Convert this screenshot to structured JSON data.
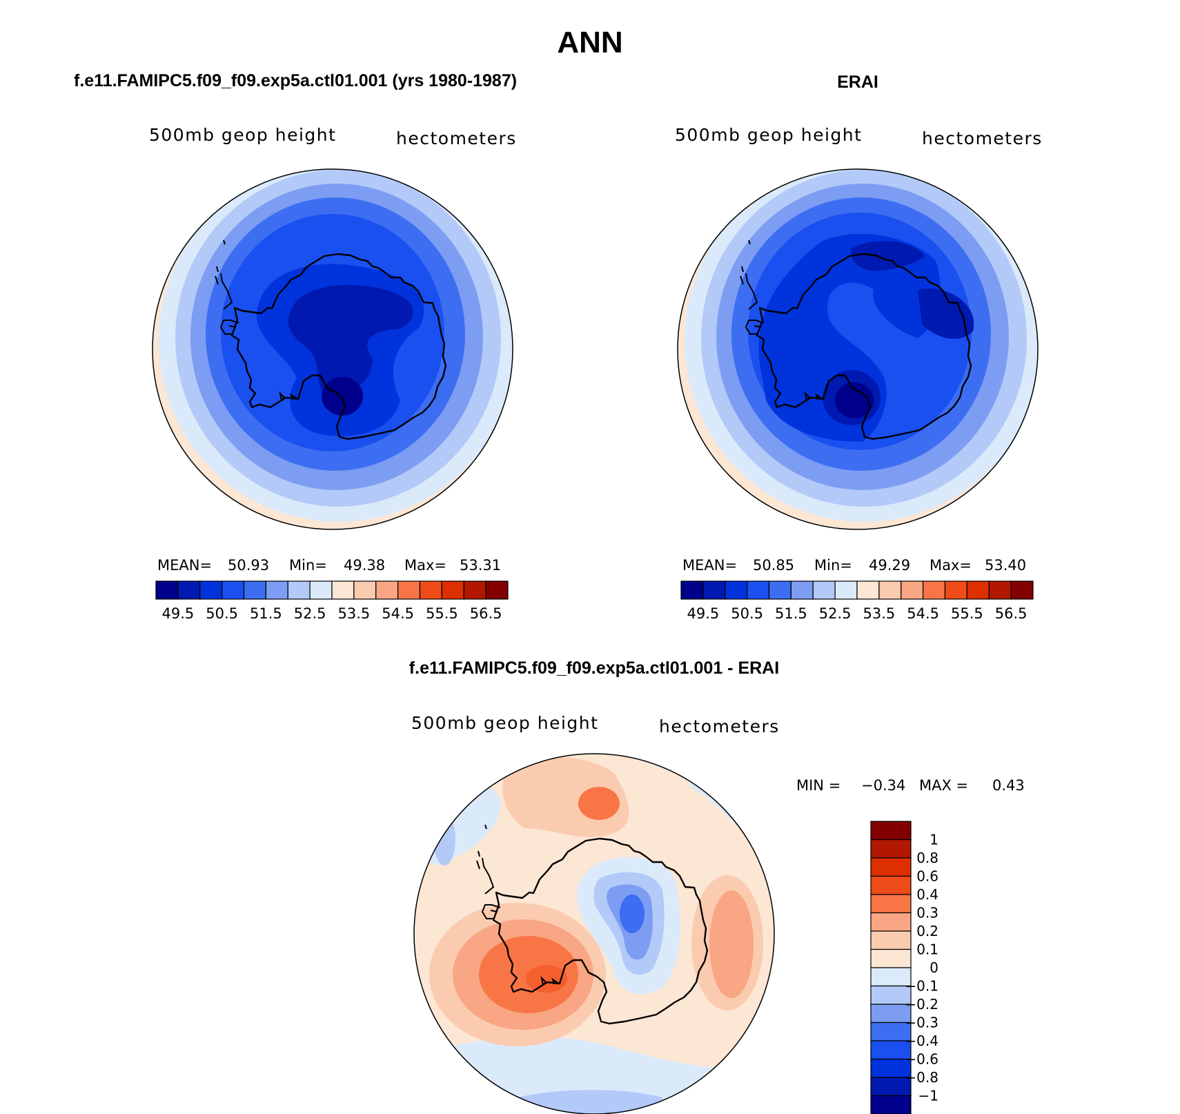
{
  "figure": {
    "title": "ANN"
  },
  "colors": {
    "abs_levels": [
      "#00008c",
      "#0019b0",
      "#0033dc",
      "#1a4ff0",
      "#3d6ef2",
      "#7d9df3",
      "#b3c9f8",
      "#daeafb",
      "#fce6d4",
      "#fbcbb0",
      "#f8a683",
      "#f87546",
      "#f04c19",
      "#de2f00",
      "#b21700",
      "#820000"
    ],
    "diff_levels": [
      "#00008c",
      "#0019b0",
      "#0033dc",
      "#1a4ff0",
      "#3d6ef2",
      "#7d9df3",
      "#b3c9f8",
      "#daeafb",
      "#fce6d4",
      "#fbcbb0",
      "#f8a683",
      "#f87546",
      "#f04c19",
      "#de2f00",
      "#b21700",
      "#820000"
    ]
  },
  "panels": {
    "model": {
      "header": "f.e11.FAMIPC5.f09_f09.exp5a.ctl01.001 (yrs 1980-1987)",
      "variable": "500mb geop height",
      "units": "hectometers",
      "stats": {
        "mean_label": "MEAN=",
        "mean": "50.93",
        "min_label": "Min=",
        "min": "49.38",
        "max_label": "Max=",
        "max": "53.31"
      },
      "colorbar_labels": [
        "49.5",
        "50.5",
        "51.5",
        "52.5",
        "53.5",
        "54.5",
        "55.5",
        "56.5"
      ]
    },
    "obs": {
      "header": "ERAI",
      "variable": "500mb geop height",
      "units": "hectometers",
      "stats": {
        "mean_label": "MEAN=",
        "mean": "50.85",
        "min_label": "Min=",
        "min": "49.29",
        "max_label": "Max=",
        "max": "53.40"
      },
      "colorbar_labels": [
        "49.5",
        "50.5",
        "51.5",
        "52.5",
        "53.5",
        "54.5",
        "55.5",
        "56.5"
      ]
    },
    "diff": {
      "header": "f.e11.FAMIPC5.f09_f09.exp5a.ctl01.001 - ERAI",
      "variable": "500mb geop height",
      "units": "hectometers",
      "stats": {
        "min_label": "MIN =",
        "min": "−0.34",
        "max_label": "MAX =",
        "max": "0.43"
      },
      "colorbar_labels": [
        "1",
        "0.8",
        "0.6",
        "0.4",
        "0.3",
        "0.2",
        "0.1",
        "0",
        "−0.1",
        "−0.2",
        "−0.3",
        "−0.4",
        "−0.6",
        "−0.8",
        "−1"
      ]
    }
  }
}
